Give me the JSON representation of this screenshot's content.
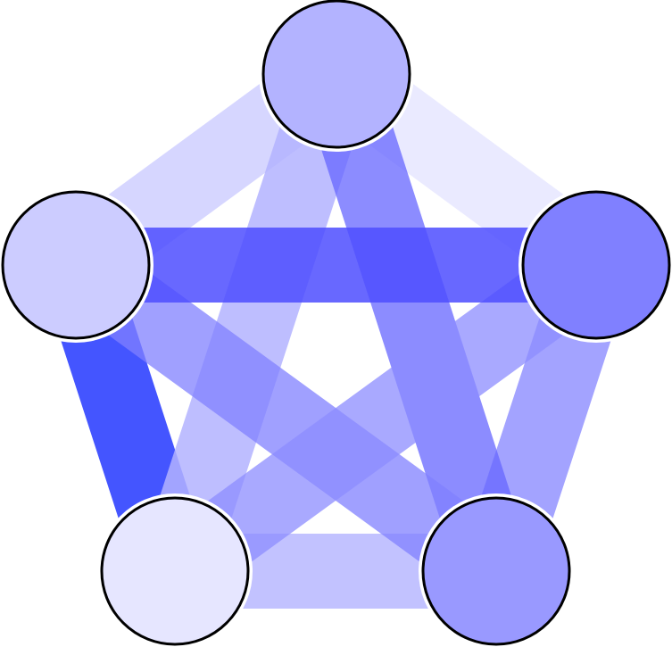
{
  "diagram": {
    "kind": "complete-graph-K5",
    "nodes": [
      {
        "id": "top",
        "fill": "#b3b3ff"
      },
      {
        "id": "left",
        "fill": "#ccccff"
      },
      {
        "id": "right",
        "fill": "#8080ff"
      },
      {
        "id": "bottom-left",
        "fill": "#e6e6ff"
      },
      {
        "id": "bottom-right",
        "fill": "#9999ff"
      }
    ],
    "node_stroke": "#000000",
    "edges": [
      {
        "from": "top",
        "to": "left",
        "fill": "#ccccff",
        "opacity": 0.8
      },
      {
        "from": "top",
        "to": "right",
        "fill": "#e6e6ff",
        "opacity": 0.85
      },
      {
        "from": "left",
        "to": "bottom-left",
        "fill": "#4455ff",
        "opacity": 1.0
      },
      {
        "from": "right",
        "to": "bottom-right",
        "fill": "#9999ff",
        "opacity": 0.9
      },
      {
        "from": "bottom-left",
        "to": "bottom-right",
        "fill": "#b3b3ff",
        "opacity": 0.8
      },
      {
        "from": "top",
        "to": "bottom-left",
        "fill": "#b3b3ff",
        "opacity": 0.85
      },
      {
        "from": "top",
        "to": "bottom-right",
        "fill": "#6666ff",
        "opacity": 0.75
      },
      {
        "from": "left",
        "to": "bottom-right",
        "fill": "#8080ff",
        "opacity": 0.75
      },
      {
        "from": "right",
        "to": "bottom-left",
        "fill": "#8c8cff",
        "opacity": 0.75
      },
      {
        "from": "left",
        "to": "right",
        "fill": "#4d4dff",
        "opacity": 0.85
      }
    ]
  }
}
